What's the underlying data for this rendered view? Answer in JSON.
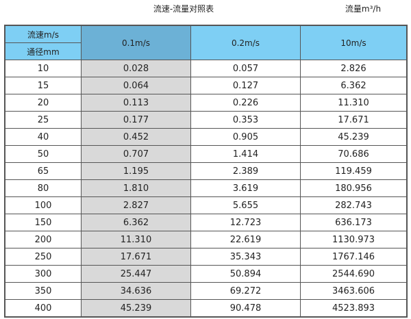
{
  "title": "流速-流量对照表",
  "unit": "流量m³/h",
  "header": {
    "corner_top": "流速m/s",
    "corner_bottom": "通径mm",
    "columns": [
      "0.1m/s",
      "0.2m/s",
      "10m/s"
    ]
  },
  "colors": {
    "header": "#7ecff4",
    "header_selected": "#6cb1d6",
    "column_highlight": "#d9d9d9"
  },
  "rows": [
    [
      "10",
      "0.028",
      "0.057",
      "2.826"
    ],
    [
      "15",
      "0.064",
      "0.127",
      "6.362"
    ],
    [
      "20",
      "0.113",
      "0.226",
      "11.310"
    ],
    [
      "25",
      "0.177",
      "0.353",
      "17.671"
    ],
    [
      "40",
      "0.452",
      "0.905",
      "45.239"
    ],
    [
      "50",
      "0.707",
      "1.414",
      "70.686"
    ],
    [
      "65",
      "1.195",
      "2.389",
      "119.459"
    ],
    [
      "80",
      "1.810",
      "3.619",
      "180.956"
    ],
    [
      "100",
      "2.827",
      "5.655",
      "282.743"
    ],
    [
      "150",
      "6.362",
      "12.723",
      "636.173"
    ],
    [
      "200",
      "11.310",
      "22.619",
      "1130.973"
    ],
    [
      "250",
      "17.671",
      "35.343",
      "1767.146"
    ],
    [
      "300",
      "25.447",
      "50.894",
      "2544.690"
    ],
    [
      "350",
      "34.636",
      "69.272",
      "3463.606"
    ],
    [
      "400",
      "45.239",
      "90.478",
      "4523.893"
    ]
  ]
}
